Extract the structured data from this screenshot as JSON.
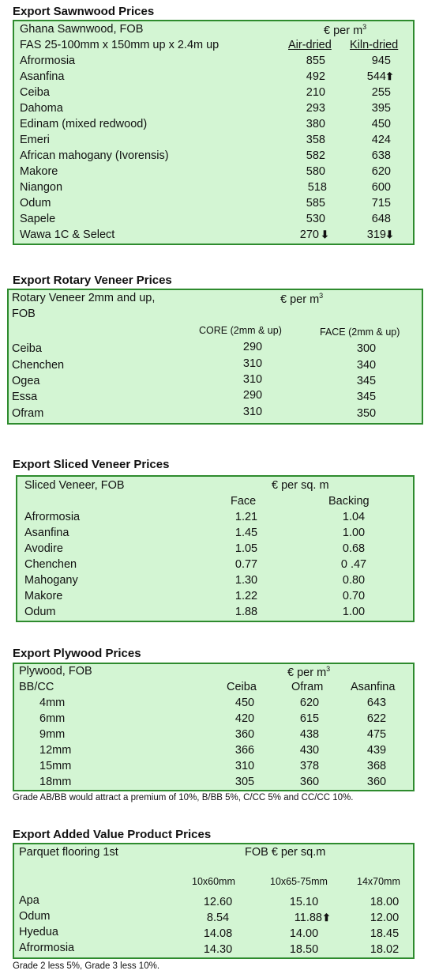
{
  "sawnwood": {
    "title": "Export Sawnwood Prices",
    "header1": "Ghana Sawnwood, FOB",
    "unit": "€ per m",
    "unit_sup": "3",
    "header2": "FAS 25-100mm x 150mm up x 2.4m up",
    "col1": "Air-dried",
    "col2": "Kiln-dried",
    "rows": [
      {
        "name": "Afrormosia",
        "a": "855",
        "k": "945"
      },
      {
        "name": "Asanfina",
        "a": "492",
        "k": "544"
      },
      {
        "name": "Ceiba",
        "a": "210",
        "k": "255"
      },
      {
        "name": "Dahoma",
        "a": "293",
        "k": "395"
      },
      {
        "name": "Edinam (mixed redwood)",
        "a": "380",
        "k": "450"
      },
      {
        "name": "Emeri",
        "a": "358",
        "k": "424"
      },
      {
        "name": "African mahogany (Ivorensis)",
        "a": "582",
        "k": "638"
      },
      {
        "name": "Makore",
        "a": "580",
        "k": "620"
      },
      {
        "name": "Niangon",
        "a": "518",
        "k": "600"
      },
      {
        "name": "Odum",
        "a": "585",
        "k": "715"
      },
      {
        "name": "Sapele",
        "a": "530",
        "k": "648"
      },
      {
        "name": "Wawa 1C & Select",
        "a": "270",
        "k": "319"
      }
    ],
    "arrows": {
      "up": "⬆",
      "down": "⬇"
    }
  },
  "rotary": {
    "title": "Export Rotary Veneer Prices",
    "header1": "Rotary Veneer 2mm and up,",
    "header1b": "FOB",
    "unit": "€  per m",
    "unit_sup": "3",
    "col1": "CORE (2mm & up)",
    "col2": "FACE (2mm & up)",
    "rows": [
      {
        "name": "Ceiba",
        "c": "290",
        "f": "300"
      },
      {
        "name": "Chenchen",
        "c": "310",
        "f": "340"
      },
      {
        "name": "Ogea",
        "c": "310",
        "f": "345"
      },
      {
        "name": "Essa",
        "c": "290",
        "f": "345"
      },
      {
        "name": "Ofram",
        "c": "310",
        "f": "350"
      }
    ]
  },
  "sliced": {
    "title": "Export Sliced Veneer Prices",
    "header1": "Sliced Veneer, FOB",
    "unit": "€ per sq. m",
    "col1": "Face",
    "col2": "Backing",
    "rows": [
      {
        "name": "Afrormosia",
        "f": "1.21",
        "b": "1.04"
      },
      {
        "name": "Asanfina",
        "f": "1.45",
        "b": "1.00"
      },
      {
        "name": "Avodire",
        "f": "1.05",
        "b": "0.68"
      },
      {
        "name": "Chenchen",
        "f": "0.77",
        "b": "0 .47"
      },
      {
        "name": "Mahogany",
        "f": "1.30",
        "b": "0.80"
      },
      {
        "name": "Makore",
        "f": "1.22",
        "b": "0.70"
      },
      {
        "name": "Odum",
        "f": "1.88",
        "b": "1.00"
      }
    ]
  },
  "plywood": {
    "title": "Export Plywood Prices",
    "header1": "Plywood, FOB",
    "unit": "€ per m",
    "unit_sup": "3",
    "header2": "BB/CC",
    "col1": "Ceiba",
    "col2": "Ofram",
    "col3": "Asanfina",
    "rows": [
      {
        "name": "4mm",
        "a": "450",
        "b": "620",
        "c": "643"
      },
      {
        "name": "6mm",
        "a": "420",
        "b": "615",
        "c": "622"
      },
      {
        "name": "9mm",
        "a": "360",
        "b": "438",
        "c": "475"
      },
      {
        "name": "12mm",
        "a": "366",
        "b": "430",
        "c": "439"
      },
      {
        "name": "15mm",
        "a": "310",
        "b": "378",
        "c": "368"
      },
      {
        "name": "18mm",
        "a": "305",
        "b": "360",
        "c": "360"
      }
    ],
    "note": "Grade AB/BB would attract a premium of 10%, B/BB 5%, C/CC 5% and CC/CC 10%."
  },
  "added": {
    "title": "Export Added Value Product Prices",
    "header1": "Parquet flooring 1st",
    "unit": "FOB € per sq.m",
    "col1": "10x60mm",
    "col2": "10x65-75mm",
    "col3": "14x70mm",
    "rows": [
      {
        "name": "Apa",
        "a": "12.60",
        "b": "15.10",
        "c": "18.00"
      },
      {
        "name": "Odum",
        "a": "8.54",
        "b": "11.88",
        "c": "12.00"
      },
      {
        "name": "Hyedua",
        "a": "14.08",
        "b": "14.00",
        "c": "18.45"
      },
      {
        "name": "Afrormosia",
        "a": "14.30",
        "b": "18.50",
        "c": "18.02"
      }
    ],
    "note": "Grade 2 less 5%, Grade 3 less 10%."
  }
}
